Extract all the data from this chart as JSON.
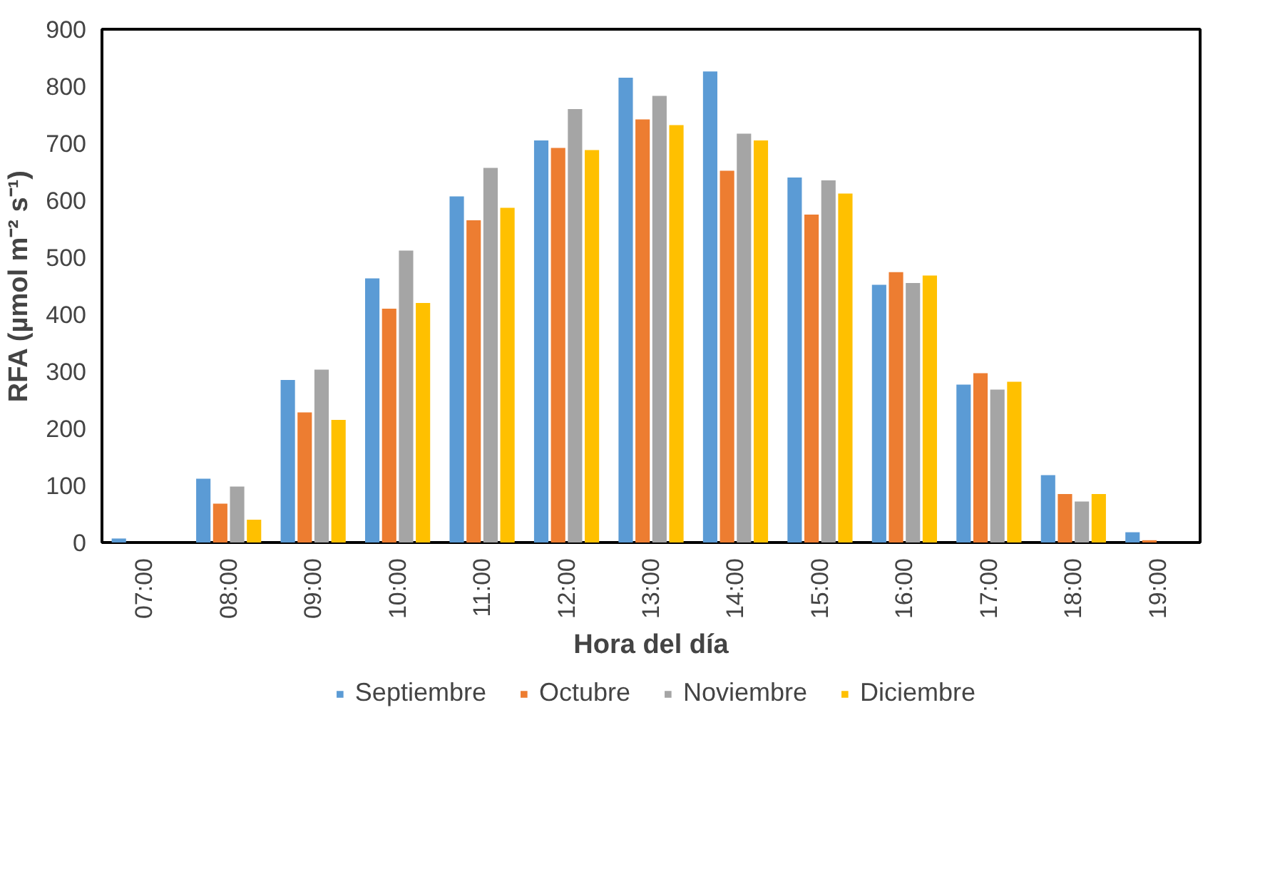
{
  "chart_data": {
    "type": "bar",
    "xlabel": "Hora del día",
    "ylabel": "RFA (µmol m⁻² s⁻¹)",
    "categories": [
      "07:00",
      "08:00",
      "09:00",
      "10:00",
      "11:00",
      "12:00",
      "13:00",
      "14:00",
      "15:00",
      "16:00",
      "17:00",
      "18:00",
      "19:00"
    ],
    "series": [
      {
        "name": "Septiembre",
        "color": "#5b9bd5",
        "values": [
          7,
          112,
          285,
          463,
          607,
          705,
          815,
          826,
          640,
          452,
          277,
          118,
          18
        ]
      },
      {
        "name": "Octubre",
        "color": "#ed7d31",
        "values": [
          0,
          68,
          228,
          410,
          565,
          692,
          742,
          652,
          575,
          474,
          297,
          85,
          4
        ]
      },
      {
        "name": "Noviembre",
        "color": "#a5a5a5",
        "values": [
          0,
          98,
          303,
          512,
          657,
          760,
          783,
          717,
          635,
          455,
          268,
          72,
          0
        ]
      },
      {
        "name": "Diciembre",
        "color": "#ffc000",
        "values": [
          0,
          40,
          215,
          420,
          587,
          688,
          732,
          705,
          612,
          468,
          282,
          85,
          0
        ]
      }
    ],
    "ylim": [
      0,
      900
    ],
    "yticks": [
      0,
      100,
      200,
      300,
      400,
      500,
      600,
      700,
      800,
      900
    ],
    "grid": false,
    "legend": "bottom"
  }
}
